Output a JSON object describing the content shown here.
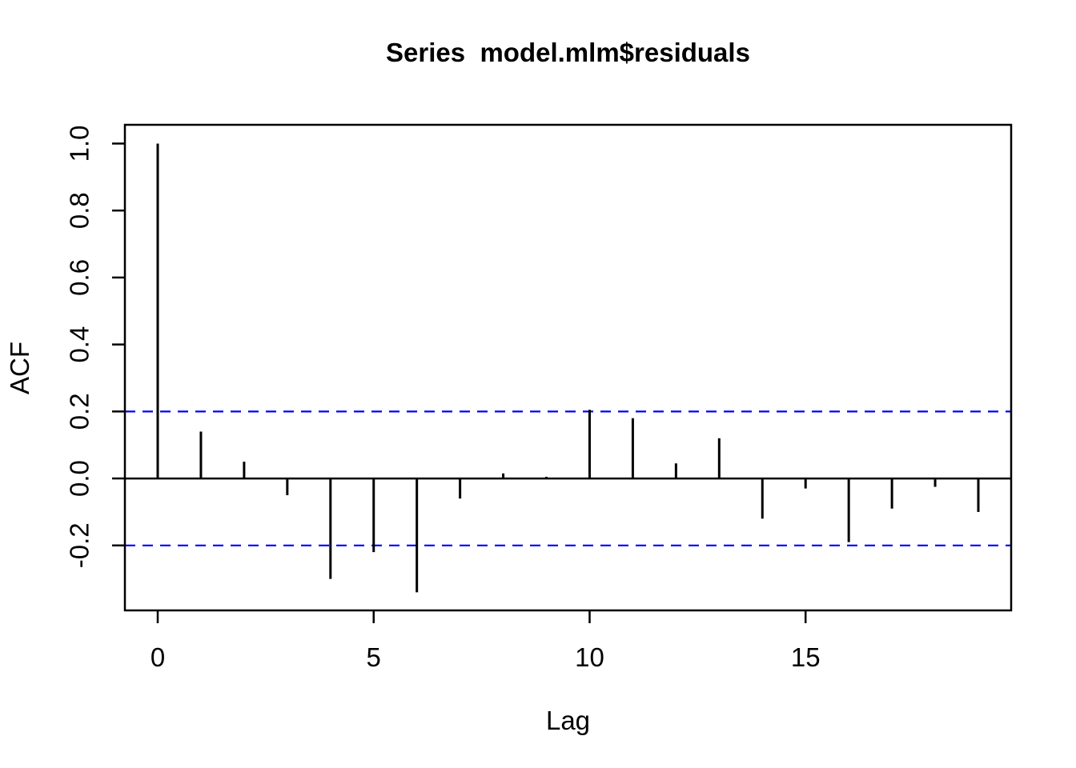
{
  "page": {
    "background": "#ffffff",
    "kind": "R statistical plot (acf)"
  },
  "chart_data": {
    "type": "bar",
    "subtype": "acf-stick-plot",
    "title": "Series  model.mlm$residuals",
    "xlabel": "Lag",
    "ylabel": "ACF",
    "x": [
      0,
      1,
      2,
      3,
      4,
      5,
      6,
      7,
      8,
      9,
      10,
      11,
      12,
      13,
      14,
      15,
      16,
      17,
      18,
      19
    ],
    "values": [
      1.0,
      0.14,
      0.05,
      -0.05,
      -0.3,
      -0.22,
      -0.34,
      -0.06,
      0.015,
      0.005,
      0.205,
      0.18,
      0.045,
      0.12,
      -0.12,
      -0.03,
      -0.19,
      -0.09,
      -0.025,
      -0.1
    ],
    "x_ticks": [
      0,
      5,
      10,
      15
    ],
    "x_tick_labels": [
      "0",
      "5",
      "10",
      "15"
    ],
    "y_ticks": [
      1.0,
      0.8,
      0.6,
      0.4,
      0.2,
      0.0,
      -0.2
    ],
    "y_tick_labels": [
      "1.0",
      "0.8",
      "0.6",
      "0.4",
      "0.2",
      "0.0",
      "-0.2"
    ],
    "xlim": [
      -0.76,
      19.76
    ],
    "ylim": [
      -0.394,
      1.056
    ],
    "confidence_bands": {
      "upper": 0.2,
      "lower": -0.2,
      "style": "dashed",
      "color": "#0000ff"
    },
    "colors": {
      "bar": "#000000",
      "axis": "#000000",
      "background": "#ffffff"
    },
    "grid": false,
    "legend": null
  }
}
